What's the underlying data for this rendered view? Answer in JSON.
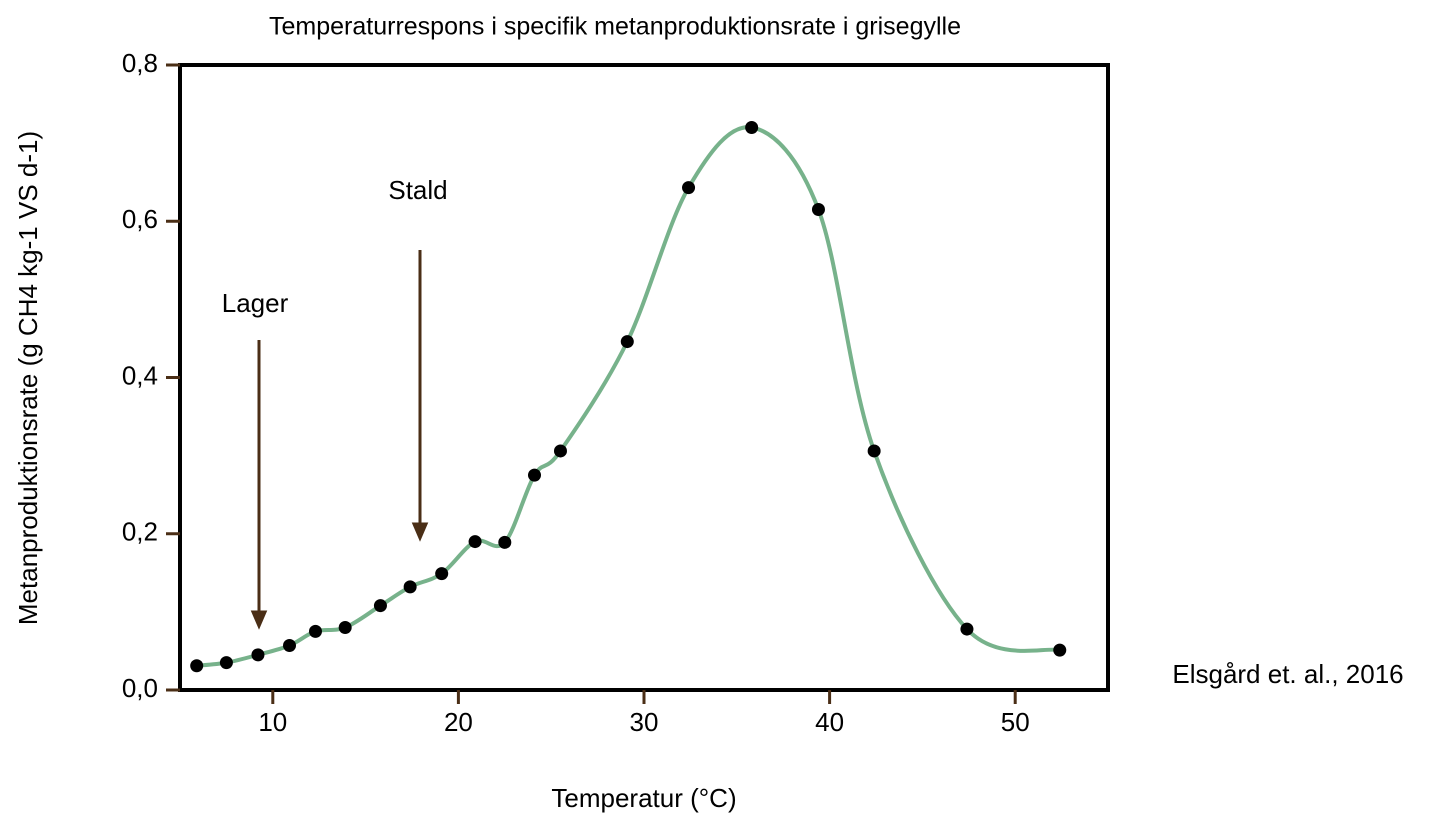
{
  "chart_data": {
    "type": "line",
    "title": "Temperaturrespons i specifik metanproduktionsrate i grisegylle",
    "x_label": "Temperatur (°C)",
    "y_label": "Metanproduktionsrate (g CH4 kg-1 VS d-1)",
    "annotations": [
      "Lager",
      "Stald"
    ],
    "source": "Elsgård et. al., 2016",
    "x": [
      5.9,
      7.5,
      9.2,
      10.9,
      12.3,
      13.9,
      15.8,
      17.4,
      19.1,
      20.9,
      22.5,
      24.1,
      25.5,
      29.1,
      32.4,
      35.8,
      39.4,
      42.4,
      47.4,
      52.4
    ],
    "series": [
      {
        "color": "#77b28b",
        "marker_color": "#000000",
        "values": [
          0.031,
          0.035,
          0.045,
          0.057,
          0.075,
          0.08,
          0.108,
          0.132,
          0.149,
          0.19,
          0.189,
          0.275,
          0.306,
          0.446,
          0.643,
          0.72,
          0.615,
          0.306,
          0.078,
          0.051
        ]
      }
    ],
    "xlim": [
      5,
      55
    ],
    "xticks": [
      10,
      20,
      30,
      40,
      50
    ],
    "ylim": [
      0,
      0.8
    ],
    "yticks": [
      {
        "value": 0,
        "label": "0,0"
      },
      {
        "value": 0.2,
        "label": "0,2"
      },
      {
        "value": 0.4,
        "label": "0,4"
      },
      {
        "value": 0.6,
        "label": "0,6"
      },
      {
        "value": 0.8,
        "label": "0,8"
      }
    ],
    "grid": false
  }
}
